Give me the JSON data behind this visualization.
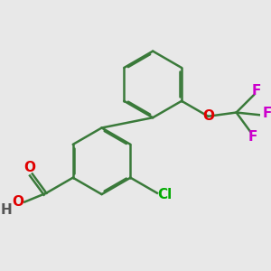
{
  "background_color": "#e8e8e8",
  "bond_color": "#3a7a3a",
  "atom_colors": {
    "O": "#e00000",
    "Cl": "#00aa00",
    "F": "#cc00cc",
    "H": "#555555",
    "C": "#000000"
  },
  "bond_width": 1.8,
  "dbo": 0.055,
  "figsize": [
    3.0,
    3.0
  ],
  "dpi": 100
}
